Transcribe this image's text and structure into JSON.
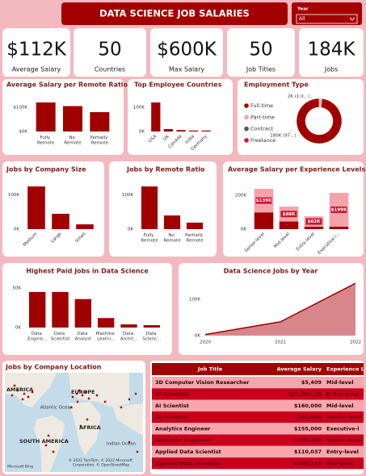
{
  "header": {
    "title": "DATA SCIENCE JOB SALARIES",
    "filter_label": "Year",
    "filter_value": "All"
  },
  "kpis": [
    {
      "value": "$112K",
      "label": "Average Salary"
    },
    {
      "value": "50",
      "label": "Countries"
    },
    {
      "value": "$600K",
      "label": "Max Salary"
    },
    {
      "value": "50",
      "label": "Job Titles"
    },
    {
      "value": "184K",
      "label": "Jobs"
    }
  ],
  "chart_data": [
    {
      "type": "bar",
      "title": "Average Salary per Remote Ratio",
      "categories": [
        "Fully Remote",
        "No Remote",
        "Partially Remote"
      ],
      "values": [
        120000,
        105000,
        80000
      ],
      "color": "#a00000",
      "ylim": [
        0,
        130000
      ],
      "yticks": [
        {
          "value": 0,
          "label": "$0K"
        },
        {
          "value": 100000,
          "label": "$100K"
        }
      ]
    },
    {
      "type": "bar",
      "title": "Top Employee Countries",
      "categories": [
        "USA",
        "UK",
        "Canada",
        "India",
        "Germany"
      ],
      "values": [
        120000,
        10000,
        6000,
        4000,
        4000
      ],
      "color": "#a00000",
      "ylim": [
        0,
        130000
      ],
      "yticks": [
        {
          "value": 0,
          "label": "0K"
        },
        {
          "value": 100000,
          "label": "100K"
        }
      ]
    },
    {
      "type": "pie",
      "title": "Employment Type",
      "categories": [
        "Full-time",
        "Part-time",
        "Contract",
        "Freelance"
      ],
      "values": [
        180000,
        2000,
        1000,
        1000
      ],
      "value_labels": [
        "180K (97...)",
        "2K (1.0...)",
        null,
        null
      ],
      "colors": [
        "#a00000",
        "#f4a3ab",
        "#555555",
        "#e0102a"
      ]
    },
    {
      "type": "bar",
      "title": "Jobs by Company Size",
      "categories": [
        "Medium",
        "Large",
        "Small"
      ],
      "values": [
        125000,
        45000,
        14000
      ],
      "color": "#a00000",
      "ylim": [
        0,
        130000
      ],
      "yticks": [
        {
          "value": 0,
          "label": "0K"
        },
        {
          "value": 100000,
          "label": "100K"
        }
      ]
    },
    {
      "type": "bar",
      "title": "Jobs by Remote Ratio",
      "categories": [
        "Fully Remote",
        "No Remote",
        "Partially Remote"
      ],
      "values": [
        125000,
        40000,
        19000
      ],
      "color": "#a00000",
      "ylim": [
        0,
        130000
      ],
      "yticks": [
        {
          "value": 0,
          "label": "0K"
        },
        {
          "value": 100000,
          "label": "100K"
        }
      ]
    },
    {
      "type": "stacked_bar",
      "title": "Average Salary per Experience Levels",
      "categories": [
        "Senior-level",
        "Mid-level",
        "Entry-level",
        "Executive-l..."
      ],
      "series": [
        {
          "color": "#a00000",
          "values": [
            99000,
            45000,
            14000,
            15000
          ]
        },
        {
          "color": "#f4a3ab",
          "values": [
            139000,
            88000,
            62000,
            199000
          ],
          "value_labels": [
            "$139K",
            "$88K",
            "$62K",
            "$199K"
          ]
        }
      ],
      "ylim": [
        0,
        240000
      ],
      "yticks": [
        {
          "value": 0,
          "label": "0K"
        },
        {
          "value": 200000,
          "label": "200K"
        }
      ]
    },
    {
      "type": "bar",
      "title": "Highest Paid Jobs in Data Science",
      "categories": [
        "Data Engine...",
        "Data Scientist",
        "Data Analyst",
        "Machine Learni...",
        "Data Archit...",
        "Data Scienc..."
      ],
      "values": [
        45000,
        45000,
        36000,
        12000,
        4000,
        3000
      ],
      "color": "#a00000",
      "ylim": [
        0,
        50000
      ],
      "yticks": [
        {
          "value": 0,
          "label": "0K"
        },
        {
          "value": 50000,
          "label": "50K"
        }
      ]
    },
    {
      "type": "area",
      "title": "Data Science Jobs by Year",
      "x": [
        2020,
        2021,
        2022
      ],
      "values": [
        3000,
        38000,
        144000
      ],
      "color": "#a00000",
      "fill": "#d8868c",
      "xlim": [
        2020,
        2022
      ],
      "xticks": [
        2020,
        2021,
        2022
      ],
      "ylim": [
        0,
        145000
      ],
      "yticks": [
        {
          "value": 0,
          "label": "0K"
        },
        {
          "value": 100000,
          "label": "100K"
        }
      ]
    }
  ],
  "map": {
    "title": "Jobs by Company Location",
    "labels": [
      "AMERICA",
      "EUROPE",
      "Atlantic Ocean",
      "AFRICA",
      "SOUTH AMERICA",
      "Indian Ocean"
    ],
    "attribution": "© 2022 TomTom, © 2022 Microsoft Corporation, © OpenStreetMap",
    "brand": "Microsoft Bing"
  },
  "table": {
    "columns": [
      "Job Title",
      "Average Salary",
      "Experience L"
    ],
    "rows": [
      [
        "3D Computer Vision Researcher",
        "$5,409",
        "Mid-level"
      ],
      [
        "AI Scientist",
        "$21,987.25",
        "Entry-level"
      ],
      [
        "AI Scientist",
        "$160,000",
        "Mid-level"
      ],
      [
        "AI Scientist",
        "$55,000",
        "Senior-level"
      ],
      [
        "Analytics Engineer",
        "$155,000",
        "Executive-l"
      ],
      [
        "Analytics Engineer",
        "$199,000",
        "Senior-level"
      ],
      [
        "Applied Data Scientist",
        "$110,037",
        "Entry-level"
      ],
      [
        "Applied Data Scientist",
        "$109,819",
        "Mid-level"
      ]
    ]
  }
}
